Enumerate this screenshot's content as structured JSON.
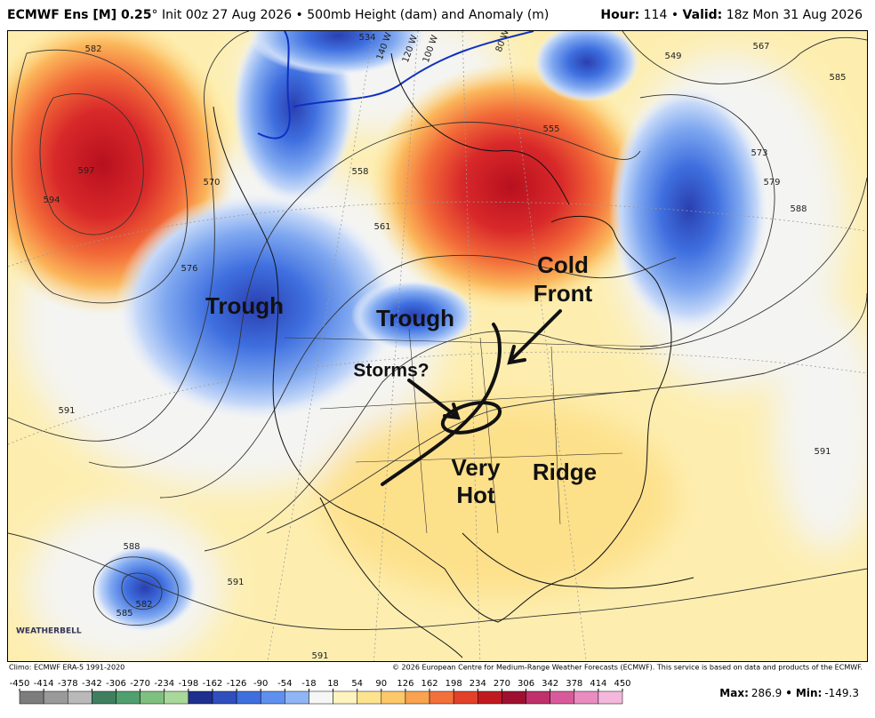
{
  "header": {
    "left": [
      {
        "text": "ECMWF Ens [M] 0.25",
        "bold": true
      },
      {
        "text": "° Init 00z 27 Aug 2026 • 500mb Height (dam) and Anomaly (m)",
        "bold": false
      }
    ],
    "right": [
      {
        "text": "Hour:",
        "bold": true
      },
      {
        "text": " 114 • ",
        "bold": false
      },
      {
        "text": "Valid:",
        "bold": true
      },
      {
        "text": " 18z Mon 31 Aug 2026",
        "bold": false
      }
    ]
  },
  "map": {
    "annotations": {
      "trough_west": "Trough",
      "trough_central": "Trough",
      "storms": "Storms?",
      "cold_front": [
        "Cold",
        "Front"
      ],
      "very_hot": [
        "Very",
        "Hot"
      ],
      "ridge": "Ridge"
    },
    "contour_labels": [
      582,
      597,
      594,
      570,
      576,
      591,
      534,
      549,
      567,
      585,
      573,
      579,
      588,
      555,
      561,
      558,
      591,
      588,
      582,
      585,
      591,
      591
    ],
    "longitude_labels": [
      "140 W",
      "120 W",
      "100 W",
      "80 W"
    ],
    "logo": "WEATHERBELL"
  },
  "footer": {
    "climo": "Climo: ECMWF ERA-5 1991-2020",
    "copyright": "© 2026 European Centre for Medium-Range Weather Forecasts (ECMWF). This service is based on data and products of the ECMWF."
  },
  "colorbar": {
    "ticks": [
      -450,
      -414,
      -378,
      -342,
      -306,
      -270,
      -234,
      -198,
      -162,
      -126,
      -90,
      -54,
      -18,
      18,
      54,
      90,
      126,
      162,
      198,
      234,
      270,
      306,
      342,
      378,
      414,
      450
    ],
    "colors": [
      "#7d7d7d",
      "#9a9a9a",
      "#b9b9b9",
      "#3f7f5f",
      "#4f9f6f",
      "#7fbf7f",
      "#a8d89a",
      "#1f2f8f",
      "#2f4fbf",
      "#3f6fdf",
      "#5f8fef",
      "#8fb5f5",
      "#f6f6f6",
      "#fff3c0",
      "#fde38f",
      "#fcc86a",
      "#f9a24f",
      "#f4703a",
      "#e3402a",
      "#c01a20",
      "#9f1030",
      "#c0306a",
      "#d95a9a",
      "#e98cc0",
      "#f4b8dc"
    ]
  },
  "stats": {
    "max_label": "Max:",
    "max": 286.9,
    "separator": "•",
    "min_label": "Min:",
    "min": -149.3
  }
}
